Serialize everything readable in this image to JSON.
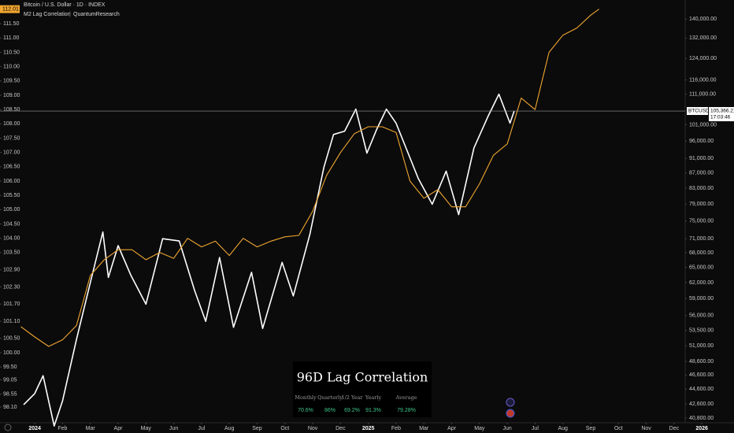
{
  "chart_data": {
    "type": "line",
    "title": "Bitcoin / U.S. Dollar · 1D · INDEX",
    "indicator": "M2 Lag Correlation",
    "author": "QuantumResearch",
    "symbol": "BTCUSD",
    "countdown": "17:03:46",
    "last_price": {
      "value": 105366.21,
      "label": "105,366.21"
    },
    "last_value": 112.01,
    "xlim": [
      -1.25,
      23.4
    ],
    "xticks": [
      {
        "value": 0,
        "label": "2024"
      },
      {
        "value": 1,
        "label": "Feb"
      },
      {
        "value": 2,
        "label": "Mar"
      },
      {
        "value": 3,
        "label": "Apr"
      },
      {
        "value": 4,
        "label": "May"
      },
      {
        "value": 5,
        "label": "Jun"
      },
      {
        "value": 6,
        "label": "Jul"
      },
      {
        "value": 7,
        "label": "Aug"
      },
      {
        "value": 8,
        "label": "Sep"
      },
      {
        "value": 9,
        "label": "Oct"
      },
      {
        "value": 10,
        "label": "Nov"
      },
      {
        "value": 11,
        "label": "Dec"
      },
      {
        "value": 12,
        "label": "2025"
      },
      {
        "value": 13,
        "label": "Feb"
      },
      {
        "value": 14,
        "label": "Mar"
      },
      {
        "value": 15,
        "label": "Apr"
      },
      {
        "value": 16,
        "label": "May"
      },
      {
        "value": 17,
        "label": "Jun"
      },
      {
        "value": 18,
        "label": "Jul"
      },
      {
        "value": 19,
        "label": "Aug"
      },
      {
        "value": 20,
        "label": "Sep"
      },
      {
        "value": 21,
        "label": "Oct"
      },
      {
        "value": 22,
        "label": "Nov"
      },
      {
        "value": 23,
        "label": "Dec"
      },
      {
        "value": 24,
        "label": "2026"
      }
    ],
    "ylim": [
      97.55,
      112.33
    ],
    "yticks": [
      {
        "value": 98.1,
        "label": "98.10"
      },
      98.55,
      99.05,
      {
        "value": 99.5,
        "label": "99.50"
      },
      {
        "value": 100,
        "label": "100.00"
      },
      {
        "value": 100.5,
        "label": "100.50"
      },
      {
        "value": 101.1,
        "label": "101.10"
      },
      {
        "value": 101.7,
        "label": "101.70"
      },
      {
        "value": 102.3,
        "label": "102.30"
      },
      {
        "value": 102.9,
        "label": "102.90"
      },
      {
        "value": 103.5,
        "label": "103.50"
      },
      {
        "value": 104,
        "label": "104.00"
      },
      {
        "value": 104.5,
        "label": "104.50"
      },
      {
        "value": 105,
        "label": "105.00"
      },
      {
        "value": 105.5,
        "label": "105.50"
      },
      {
        "value": 106,
        "label": "106.00"
      },
      {
        "value": 106.5,
        "label": "106.50"
      },
      {
        "value": 107,
        "label": "107.00"
      },
      {
        "value": 107.5,
        "label": "107.50"
      },
      {
        "value": 108,
        "label": "108.00"
      },
      {
        "value": 108.5,
        "label": "108.50"
      },
      {
        "value": 109,
        "label": "109.00"
      },
      {
        "value": 109.5,
        "label": "109.50"
      },
      {
        "value": 110,
        "label": "110.00"
      },
      {
        "value": 110.5,
        "label": "110.50"
      },
      {
        "value": 111,
        "label": "111.00"
      },
      {
        "value": 111.5,
        "label": "111.50"
      }
    ],
    "y2lim": [
      40200,
      148500
    ],
    "y2_log": true,
    "y2ticks": [
      {
        "value": 140000,
        "label": "140,000.00"
      },
      {
        "value": 132000,
        "label": "132,000.00"
      },
      {
        "value": 124000,
        "label": "124,000.00"
      },
      {
        "value": 116000,
        "label": "116,000.00"
      },
      {
        "value": 111000,
        "label": "111,000.00"
      },
      {
        "value": 101000,
        "label": "101,000.00"
      },
      {
        "value": 96000,
        "label": "96,000.00"
      },
      {
        "value": 91000,
        "label": "91,000.00"
      },
      {
        "value": 87000,
        "label": "87,000.00"
      },
      {
        "value": 83000,
        "label": "83,000.00"
      },
      {
        "value": 79000,
        "label": "79,000.00"
      },
      {
        "value": 75000,
        "label": "75,000.00"
      },
      {
        "value": 71000,
        "label": "71,000.00"
      },
      {
        "value": 68000,
        "label": "68,000.00"
      },
      {
        "value": 65000,
        "label": "65,000.00"
      },
      {
        "value": 62000,
        "label": "62,000.00"
      },
      {
        "value": 59000,
        "label": "59,000.00"
      },
      {
        "value": 56000,
        "label": "56,000.00"
      },
      {
        "value": 53500,
        "label": "53,500.00"
      },
      {
        "value": 51000,
        "label": "51,000.00"
      },
      {
        "value": 48600,
        "label": "48,600.00"
      },
      {
        "value": 46600,
        "label": "46,600.00"
      },
      {
        "value": 44600,
        "label": "44,600.00"
      },
      {
        "value": 42600,
        "label": "42,600.00"
      },
      {
        "value": 40800,
        "label": "40,800.00"
      }
    ],
    "series": [
      {
        "color": "#ffffff",
        "axis": "y2",
        "x": [
          -0.4,
          0,
          0.3,
          0.7,
          1,
          1.5,
          2,
          2.45,
          2.65,
          3,
          3.45,
          4,
          4.6,
          5.2,
          5.75,
          6.15,
          6.65,
          7.15,
          7.8,
          8.2,
          8.9,
          9.3,
          9.9,
          10.4,
          10.75,
          11.15,
          11.55,
          11.95,
          12.3,
          12.65,
          13,
          13.8,
          14.3,
          14.8,
          15.25,
          15.8,
          16.3,
          16.7,
          17.1,
          17.25
        ],
        "values": [
          42500,
          44000,
          46500,
          39800,
          43000,
          52000,
          62000,
          72500,
          63000,
          69500,
          63500,
          58000,
          71000,
          70500,
          60500,
          55000,
          67000,
          54000,
          64000,
          53800,
          66000,
          59500,
          72000,
          88500,
          98000,
          99000,
          106000,
          92500,
          99500,
          106000,
          101500,
          85500,
          79000,
          87500,
          76500,
          94000,
          103500,
          111000,
          101500,
          105366.21
        ]
      },
      {
        "color": "#f0a630",
        "x": [
          -0.5,
          0,
          0.5,
          1,
          1.5,
          2,
          2.5,
          3,
          3.5,
          4,
          4.5,
          5,
          5.5,
          6,
          6.5,
          7,
          7.5,
          8,
          8.5,
          9,
          9.5,
          10,
          10.5,
          11,
          11.5,
          12,
          12.5,
          13,
          13.5,
          14,
          14.5,
          15,
          15.5,
          16,
          16.5,
          17,
          17.5,
          18,
          18.5,
          19,
          19.5,
          20,
          20.3
        ],
        "values": [
          100.91,
          100.55,
          100.22,
          100.45,
          100.95,
          102.7,
          103.25,
          103.6,
          103.6,
          103.25,
          103.5,
          103.3,
          104,
          103.7,
          103.9,
          103.4,
          104,
          103.7,
          103.9,
          104.05,
          104.1,
          104.95,
          106.2,
          107,
          107.66,
          107.9,
          107.9,
          107.7,
          106,
          105.4,
          105.7,
          105.1,
          105.1,
          105.9,
          106.9,
          107.3,
          108.9,
          108.5,
          110.5,
          111.1,
          111.35,
          111.8,
          112.01
        ]
      }
    ],
    "table": {
      "title": "96D Lag Correlation",
      "headers": [
        "Monthly",
        "Quarterly",
        "1/2 Year",
        "Yearly",
        "Average"
      ],
      "cells": [
        "70.6%",
        "86%",
        "69.2%",
        "91.3%",
        "79.28%"
      ]
    }
  }
}
